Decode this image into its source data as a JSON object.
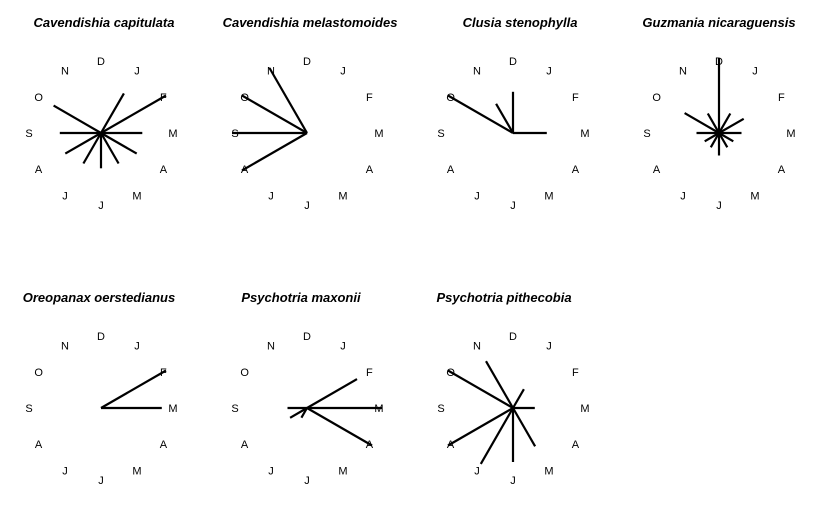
{
  "chart_data": [
    {
      "type": "radial",
      "title": "Cavendishia capitulata",
      "month_labels": [
        "J",
        "F",
        "M",
        "A",
        "M",
        "J",
        "J",
        "A",
        "S",
        "O",
        "N",
        "D"
      ],
      "values": [
        0.61,
        1.0,
        0.55,
        0.55,
        0.47,
        0.47,
        0.47,
        0.55,
        0.55,
        0.73,
        0.0,
        0.0
      ],
      "max_value": 1.0,
      "grid": false
    },
    {
      "type": "radial",
      "title": "Cavendishia melastomoides",
      "month_labels": [
        "J",
        "F",
        "M",
        "A",
        "M",
        "J",
        "J",
        "A",
        "S",
        "O",
        "N",
        "D"
      ],
      "values": [
        0.0,
        0.0,
        0.0,
        0.0,
        0.0,
        0.0,
        0.0,
        1.0,
        1.0,
        1.0,
        1.0,
        0.0
      ],
      "max_value": 1.0,
      "grid": false
    },
    {
      "type": "radial",
      "title": "Clusia stenophylla",
      "month_labels": [
        "J",
        "F",
        "M",
        "A",
        "M",
        "J",
        "J",
        "A",
        "S",
        "O",
        "N",
        "D"
      ],
      "values": [
        0.0,
        0.0,
        0.45,
        0.0,
        0.0,
        0.0,
        0.0,
        0.0,
        0.0,
        1.0,
        0.45,
        0.55
      ],
      "max_value": 1.0,
      "grid": false
    },
    {
      "type": "radial",
      "title": "Guzmania nicaraguensis",
      "month_labels": [
        "J",
        "F",
        "M",
        "A",
        "M",
        "J",
        "J",
        "A",
        "S",
        "O",
        "N",
        "D"
      ],
      "values": [
        0.3,
        0.38,
        0.3,
        0.22,
        0.22,
        0.3,
        0.22,
        0.22,
        0.3,
        0.53,
        0.3,
        1.0
      ],
      "max_value": 1.0,
      "grid": false
    },
    {
      "type": "radial",
      "title": "Oreopanax oerstedianus",
      "month_labels": [
        "J",
        "F",
        "M",
        "A",
        "M",
        "J",
        "J",
        "A",
        "S",
        "O",
        "N",
        "D"
      ],
      "values": [
        0.0,
        1.0,
        0.81,
        0.0,
        0.0,
        0.0,
        0.0,
        0.0,
        0.0,
        0.0,
        0.0,
        0.0
      ],
      "max_value": 1.0,
      "grid": false
    },
    {
      "type": "radial",
      "title": "Psychotria maxonii",
      "month_labels": [
        "J",
        "F",
        "M",
        "A",
        "M",
        "J",
        "J",
        "A",
        "S",
        "O",
        "N",
        "D"
      ],
      "values": [
        0.0,
        0.77,
        1.0,
        1.0,
        0.0,
        0.0,
        0.15,
        0.26,
        0.26,
        0.0,
        0.0,
        0.0
      ],
      "max_value": 1.0,
      "grid": false
    },
    {
      "type": "radial",
      "title": "Psychotria pithecobia",
      "month_labels": [
        "J",
        "F",
        "M",
        "A",
        "M",
        "J",
        "J",
        "A",
        "S",
        "O",
        "N",
        "D"
      ],
      "values": [
        0.29,
        0.0,
        0.29,
        0.0,
        0.59,
        0.72,
        0.86,
        1.0,
        0.0,
        1.0,
        0.72,
        0.0
      ],
      "max_value": 1.0,
      "grid": false
    }
  ]
}
